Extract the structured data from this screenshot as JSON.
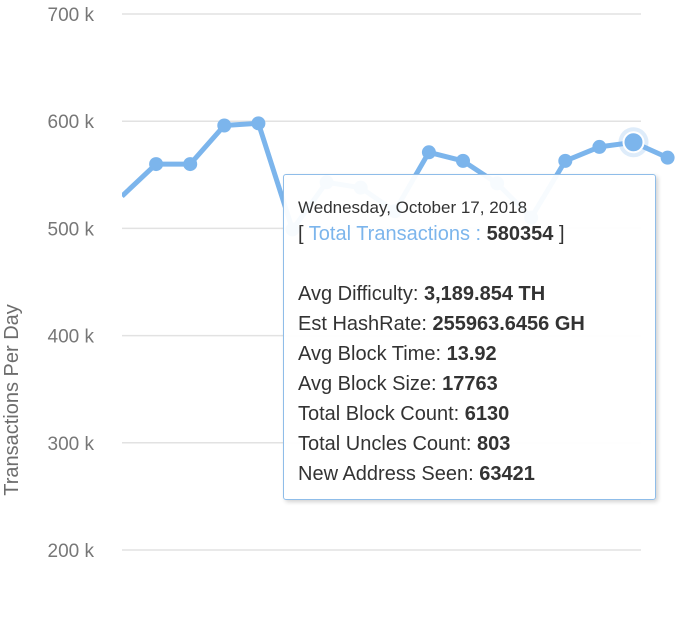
{
  "chart_data": {
    "type": "line",
    "ylabel": "Transactions Per Day",
    "y_ticks": [
      "200 k",
      "300 k",
      "400 k",
      "500 k",
      "600 k",
      "700 k"
    ],
    "ylim": [
      200000,
      700000
    ],
    "grid": true,
    "series": [
      {
        "color": "#7cb5ec",
        "values": [
          530000,
          560000,
          560000,
          596000,
          598000,
          499000,
          543000,
          538000,
          516000,
          571000,
          563000,
          542000,
          510000,
          563000,
          576000,
          580354,
          566000
        ]
      }
    ],
    "highlight_index": 15
  },
  "tooltip": {
    "date": "Wednesday, October 17, 2018",
    "open": "[",
    "series_name": "Total Transactions :",
    "series_value": "580354",
    "close": "]",
    "rows": [
      {
        "label": "Avg Difficulty:",
        "value": "3,189.854 TH"
      },
      {
        "label": "Est HashRate:",
        "value": "255963.6456 GH"
      },
      {
        "label": "Avg Block Time:",
        "value": "13.92"
      },
      {
        "label": "Avg Block Size:",
        "value": "17763"
      },
      {
        "label": "Total Block Count:",
        "value": "6130"
      },
      {
        "label": "Total Uncles Count:",
        "value": "803"
      },
      {
        "label": "New Address Seen:",
        "value": "63421"
      }
    ]
  }
}
